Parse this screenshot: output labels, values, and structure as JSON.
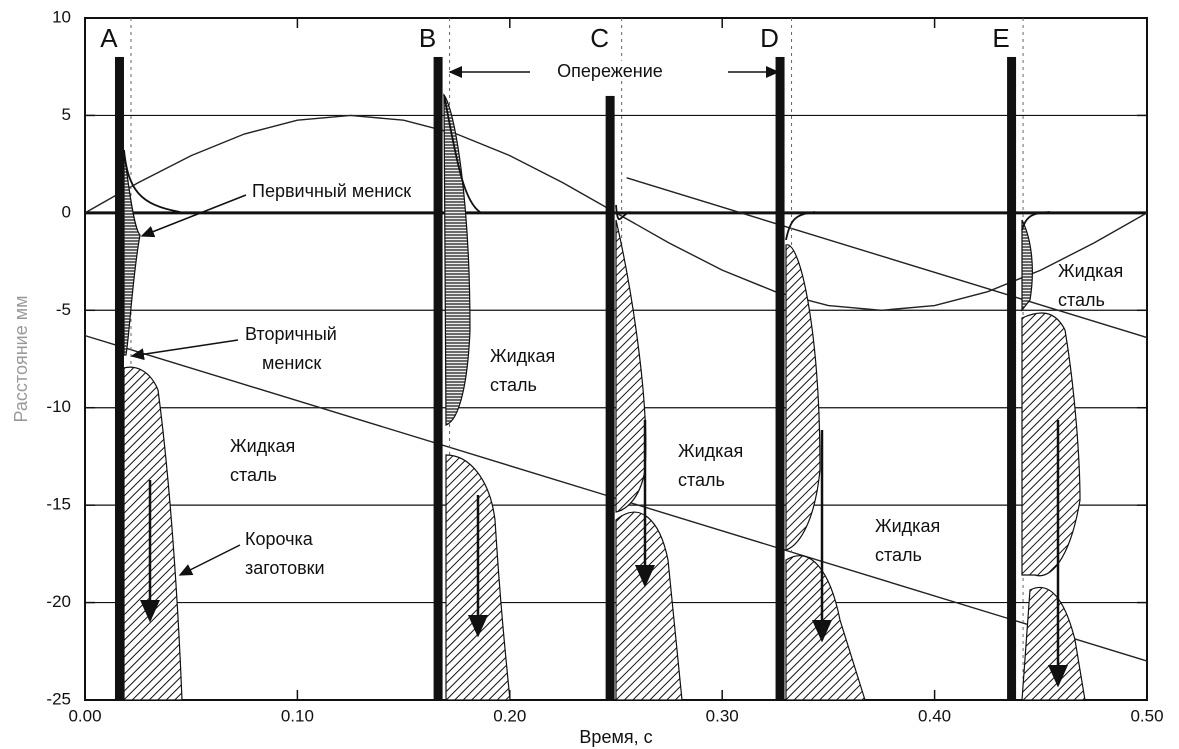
{
  "chart_data": {
    "type": "line",
    "xlabel": "Время, с",
    "ylabel": "Расстояние мм",
    "xlim": [
      0,
      0.5
    ],
    "ylim": [
      -25,
      10
    ],
    "xticks": [
      {
        "value": 0,
        "label": "0.00"
      },
      {
        "value": 0.1,
        "label": "0.10"
      },
      {
        "value": 0.2,
        "label": "0.20"
      },
      {
        "value": 0.3,
        "label": "0.30"
      },
      {
        "value": 0.4,
        "label": "0.40"
      },
      {
        "value": 0.5,
        "label": "0.50"
      }
    ],
    "yticks": [
      10,
      5,
      0,
      -5,
      -10,
      -15,
      -20,
      -25
    ],
    "grid": true,
    "series": [
      {
        "color": "#222222",
        "x": [
          0,
          0.025,
          0.05,
          0.075,
          0.1,
          0.125,
          0.15,
          0.175,
          0.2,
          0.225,
          0.25,
          0.275,
          0.3,
          0.325,
          0.35,
          0.375,
          0.4,
          0.425,
          0.45,
          0.475,
          0.5
        ],
        "values": [
          0,
          1.545,
          2.939,
          4.045,
          4.755,
          5,
          4.755,
          4.045,
          2.939,
          1.545,
          0,
          -1.545,
          -2.939,
          -4.045,
          -4.755,
          -5,
          -4.755,
          -4.045,
          -2.939,
          -1.545,
          0
        ]
      },
      {
        "color": "#222222",
        "x": [
          0,
          0.5
        ],
        "values": [
          -6.3,
          -23
        ]
      },
      {
        "color": "#222222",
        "x": [
          0.255,
          0.5
        ],
        "values": [
          1.8,
          -6.4
        ]
      }
    ],
    "wall_labels": [
      "A",
      "B",
      "C",
      "D",
      "E"
    ],
    "wall_x": [
      0.016,
      0.166,
      0.247,
      0.327,
      0.436
    ],
    "wall_top": [
      8,
      8,
      6,
      8,
      8
    ],
    "annotations": [
      [
        "Опережение"
      ],
      [
        "Первичный мениск"
      ],
      [
        "Вторичный",
        "мениск"
      ],
      [
        "Жидкая",
        "сталь"
      ],
      [
        "Корочка",
        "заготовки"
      ],
      [
        "Жидкая",
        "сталь"
      ],
      [
        "Жидкая",
        "сталь"
      ],
      [
        "Жидкая",
        "сталь"
      ],
      [
        "Жидкая",
        "сталь"
      ]
    ]
  }
}
